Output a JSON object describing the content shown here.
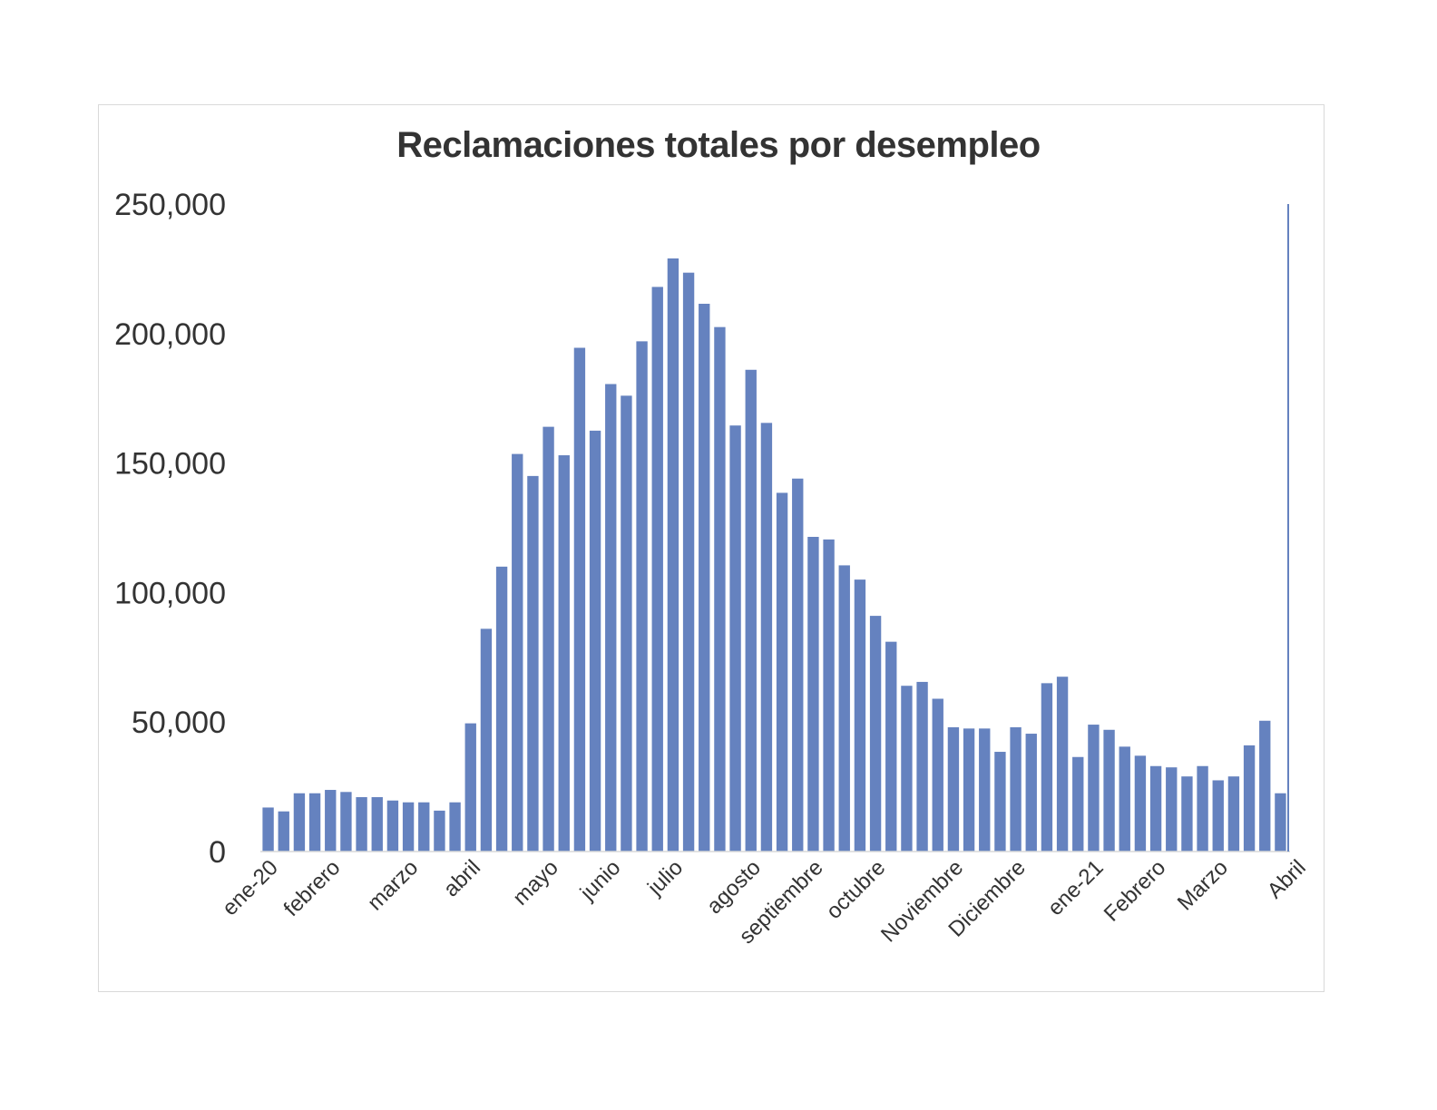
{
  "chart_data": {
    "type": "bar",
    "title": "Reclamaciones totales por desempleo",
    "xlabel": "",
    "ylabel": "",
    "ylim": [
      0,
      250000
    ],
    "y_ticks": [
      0,
      50000,
      100000,
      150000,
      200000,
      250000
    ],
    "y_tick_labels": [
      "0",
      "50,000",
      "100,000",
      "150,000",
      "200,000",
      "250,000"
    ],
    "grid": false,
    "legend": "none",
    "bar_color": "#6582BF",
    "x_tick_labels": [
      {
        "index": 0,
        "label": "ene-20"
      },
      {
        "index": 4,
        "label": "febrero"
      },
      {
        "index": 9,
        "label": "marzo"
      },
      {
        "index": 13,
        "label": "abril"
      },
      {
        "index": 18,
        "label": "mayo"
      },
      {
        "index": 22,
        "label": "junio"
      },
      {
        "index": 26,
        "label": "julio"
      },
      {
        "index": 31,
        "label": "agosto"
      },
      {
        "index": 35,
        "label": "septiembre"
      },
      {
        "index": 39,
        "label": "octubre"
      },
      {
        "index": 44,
        "label": "Noviembre"
      },
      {
        "index": 48,
        "label": "Diciembre"
      },
      {
        "index": 53,
        "label": "ene-21"
      },
      {
        "index": 57,
        "label": "Febrero"
      },
      {
        "index": 61,
        "label": "Marzo"
      },
      {
        "index": 66,
        "label": "Abril"
      }
    ],
    "values": [
      17000,
      15500,
      22500,
      22500,
      23800,
      23000,
      21000,
      21000,
      19700,
      19000,
      19000,
      15800,
      19000,
      49500,
      86000,
      110000,
      153500,
      145000,
      164000,
      153000,
      194500,
      162500,
      180500,
      176000,
      197000,
      218000,
      229000,
      223500,
      211500,
      202500,
      164500,
      186000,
      165500,
      138500,
      144000,
      121500,
      120500,
      110500,
      105000,
      91000,
      81000,
      64000,
      65500,
      59000,
      48000,
      47500,
      47500,
      38500,
      48000,
      45500,
      65000,
      67500,
      36500,
      49000,
      47000,
      40500,
      37000,
      33000,
      32500,
      29000,
      33000,
      27500,
      29000,
      41000,
      50500,
      22500
    ]
  }
}
